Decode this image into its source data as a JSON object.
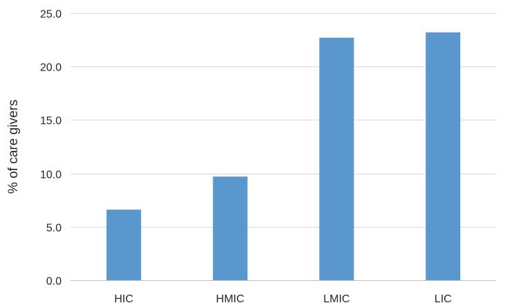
{
  "chart_data": {
    "type": "bar",
    "title": "",
    "xlabel": "",
    "ylabel": "% of care givers",
    "categories": [
      "HIC",
      "HMIC",
      "LMIC",
      "LIC"
    ],
    "values": [
      6.6,
      9.7,
      22.7,
      23.2
    ],
    "ylim": [
      0,
      25
    ],
    "yticks": [
      "0.0",
      "5.0",
      "10.0",
      "15.0",
      "20.0",
      "25.0"
    ],
    "ytick_values": [
      0,
      5,
      10,
      15,
      20,
      25
    ],
    "grid": true,
    "legend": "none",
    "bar_color": "#5b97cf",
    "grid_color": "#d9d9d9"
  }
}
